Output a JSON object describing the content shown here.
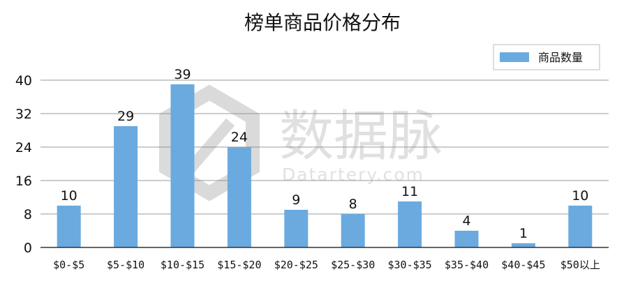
{
  "chart_data": {
    "type": "bar",
    "title": "榜单商品价格分布",
    "categories": [
      "$0-$5",
      "$5-$10",
      "$10-$15",
      "$15-$20",
      "$20-$25",
      "$25-$30",
      "$30-$35",
      "$35-$40",
      "$40-$45",
      "$50以上"
    ],
    "series": [
      {
        "name": "商品数量",
        "values": [
          10,
          29,
          39,
          24,
          9,
          8,
          11,
          4,
          1,
          10
        ]
      }
    ],
    "ylim": [
      0,
      40
    ],
    "yticks": [
      "0",
      "8",
      "16",
      "24",
      "32",
      "40"
    ],
    "grid": true,
    "legend_position": "top-right",
    "colors": {
      "bar": "#6aaadf",
      "grid": "#bbbbbb",
      "axis": "#333333"
    }
  },
  "watermark": {
    "name_text": "数据脉",
    "url_text": "Datartery.com"
  }
}
